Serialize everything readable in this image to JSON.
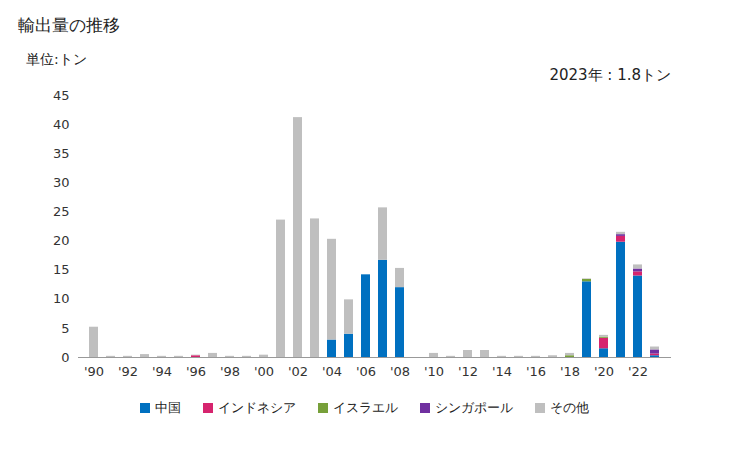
{
  "chart_data": {
    "type": "bar",
    "title": "輸出量の推移",
    "y_label": "単位:トン",
    "annotation": "2023年 : 1.8トン",
    "stacked": true,
    "grid": false,
    "legend": "bottom",
    "categories": [
      "'90",
      null,
      "'92",
      null,
      "'94",
      null,
      "'96",
      null,
      "'98",
      null,
      "'00",
      null,
      "'02",
      null,
      "'04",
      null,
      "'06",
      null,
      "'08",
      null,
      "'10",
      null,
      "'12",
      null,
      "'14",
      null,
      "'16",
      null,
      "'18",
      null,
      "'20",
      null,
      "'22",
      null
    ],
    "ylim": [
      0,
      45
    ],
    "yticks": [
      0,
      5,
      10,
      15,
      20,
      25,
      30,
      35,
      40,
      45
    ],
    "series": [
      {
        "name": "中国",
        "color": "#0070c0",
        "values": [
          0,
          0,
          0,
          0,
          0,
          0,
          0,
          0,
          0,
          0,
          0,
          0,
          0,
          0,
          3.0,
          4.0,
          14.2,
          16.7,
          12.0,
          0,
          0,
          0,
          0,
          0,
          0,
          0,
          0,
          0,
          0,
          13.0,
          1.5,
          19.8,
          14.0,
          0.3
        ]
      },
      {
        "name": "インドネシア",
        "color": "#d6246e",
        "values": [
          0,
          0,
          0,
          0,
          0,
          0,
          0.3,
          0,
          0,
          0,
          0,
          0,
          0,
          0,
          0,
          0,
          0,
          0,
          0,
          0,
          0,
          0,
          0,
          0,
          0,
          0,
          0,
          0,
          0,
          0,
          1.8,
          1.0,
          0.7,
          0.3
        ]
      },
      {
        "name": "イスラエル",
        "color": "#77a03a",
        "values": [
          0,
          0,
          0,
          0,
          0,
          0,
          0,
          0,
          0,
          0,
          0,
          0,
          0,
          0,
          0,
          0,
          0,
          0,
          0,
          0,
          0,
          0,
          0,
          0,
          0,
          0,
          0,
          0,
          0.3,
          0.4,
          0.2,
          0,
          0,
          0
        ]
      },
      {
        "name": "シンガポール",
        "color": "#7030a0",
        "values": [
          0,
          0,
          0,
          0,
          0,
          0,
          0,
          0,
          0,
          0,
          0,
          0,
          0,
          0,
          0,
          0,
          0,
          0,
          0,
          0,
          0,
          0,
          0,
          0,
          0,
          0,
          0,
          0,
          0,
          0,
          0,
          0.3,
          0.5,
          0.7
        ]
      },
      {
        "name": "その他",
        "color": "#bfbfbf",
        "values": [
          5.2,
          0.2,
          0.2,
          0.5,
          0.2,
          0.2,
          0.1,
          0.7,
          0.2,
          0.2,
          0.4,
          23.6,
          41.2,
          23.8,
          17.3,
          5.9,
          0,
          9.0,
          3.3,
          0,
          0.7,
          0.2,
          1.2,
          1.2,
          0.2,
          0.2,
          0.2,
          0.3,
          0.4,
          0.1,
          0.3,
          0.4,
          0.7,
          0.5
        ]
      }
    ]
  }
}
